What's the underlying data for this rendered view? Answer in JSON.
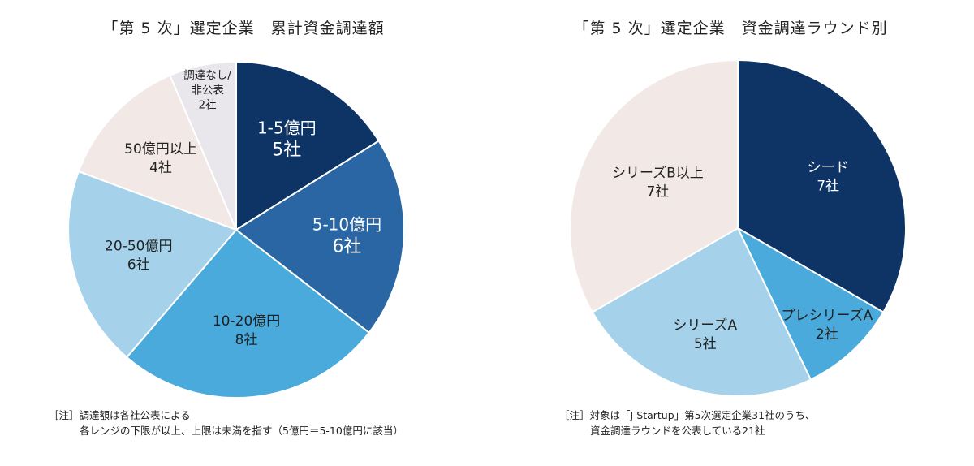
{
  "chart_data": [
    {
      "type": "pie",
      "title": "「第 5 次」選定企業　累計資金調達額",
      "start_angle_deg": 0,
      "slices": [
        {
          "label": "1-5億円",
          "value": 5,
          "value_label": "5社",
          "color": "#0e3365",
          "text_color": "#ffffff"
        },
        {
          "label": "5-10億円",
          "value": 6,
          "value_label": "6社",
          "color": "#2a66a3",
          "text_color": "#ffffff"
        },
        {
          "label": "10-20億円",
          "value": 8,
          "value_label": "8社",
          "color": "#4aaadb",
          "text_color": "#222222"
        },
        {
          "label": "20-50億円",
          "value": 6,
          "value_label": "6社",
          "color": "#a5d2ea",
          "text_color": "#222222"
        },
        {
          "label": "50億円以上",
          "value": 4,
          "value_label": "4社",
          "color": "#f2e9e7",
          "text_color": "#222222"
        },
        {
          "label": "調達なし/\n非公表",
          "value": 2,
          "value_label": "2社",
          "color": "#e9e7ec",
          "text_color": "#222222"
        }
      ],
      "note_prefix": "［注］",
      "note_lines": [
        "調達額は各社公表による",
        "各レンジの下限が以上、上限は未満を指す（5億円＝5-10億円に該当）"
      ]
    },
    {
      "type": "pie",
      "title": "「第 5 次」選定企業　資金調達ラウンド別",
      "start_angle_deg": 0,
      "slices": [
        {
          "label": "シード",
          "value": 7,
          "value_label": "7社",
          "color": "#0e3365",
          "text_color": "#ffffff"
        },
        {
          "label": "プレシリーズA",
          "value": 2,
          "value_label": "2社",
          "color": "#4aaadb",
          "text_color": "#222222"
        },
        {
          "label": "シリーズA",
          "value": 5,
          "value_label": "5社",
          "color": "#a5d2ea",
          "text_color": "#222222"
        },
        {
          "label": "シリーズB以上",
          "value": 7,
          "value_label": "7社",
          "color": "#f2e9e7",
          "text_color": "#222222"
        }
      ],
      "note_prefix": "［注］",
      "note_lines": [
        "対象は「J-Startup」第5次選定企業31社のうち、",
        "資金調達ラウンドを公表している21社"
      ]
    }
  ]
}
